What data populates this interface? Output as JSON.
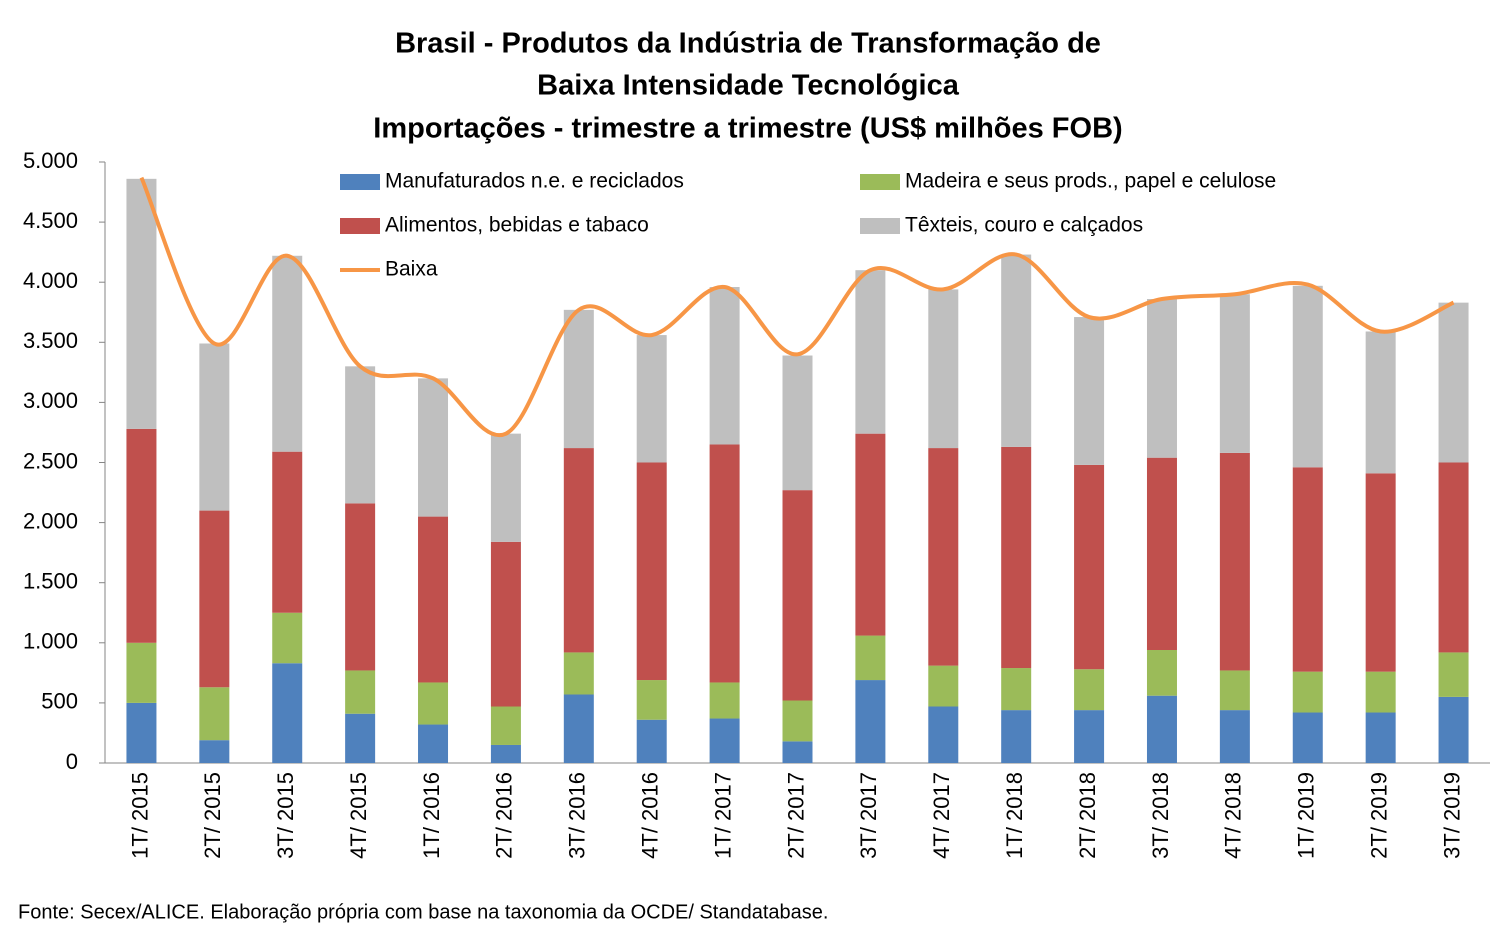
{
  "chart_data": {
    "type": "bar",
    "stacked": true,
    "title": [
      "Brasil - Produtos da Indústria de Transformação de",
      "Baixa Intensidade Tecnológica",
      "Importações - trimestre a trimestre (US$ milhões FOB)"
    ],
    "source": "Fonte: Secex/ALICE. Elaboração própria com base na taxonomia da OCDE/ Standatabase.",
    "categories": [
      "1T/ 2015",
      "2T/ 2015",
      "3T/ 2015",
      "4T/ 2015",
      "1T/ 2016",
      "2T/ 2016",
      "3T/ 2016",
      "4T/ 2016",
      "1T/ 2017",
      "2T/ 2017",
      "3T/ 2017",
      "4T/ 2017",
      "1T/ 2018",
      "2T/ 2018",
      "3T/ 2018",
      "4T/ 2018",
      "1T/ 2019",
      "2T/ 2019",
      "3T/ 2019"
    ],
    "series": [
      {
        "name": "Manufaturados n.e. e reciclados",
        "color": "#4f81bd",
        "values": [
          500,
          190,
          830,
          410,
          320,
          150,
          570,
          360,
          370,
          180,
          690,
          470,
          440,
          440,
          560,
          440,
          420,
          420,
          550
        ]
      },
      {
        "name": "Madeira e seus prods., papel e celulose",
        "color": "#9bbb59",
        "values": [
          500,
          440,
          420,
          360,
          350,
          320,
          350,
          330,
          300,
          340,
          370,
          340,
          350,
          340,
          380,
          330,
          340,
          340,
          370
        ]
      },
      {
        "name": "Alimentos, bebidas e tabaco",
        "color": "#c0504d",
        "values": [
          1780,
          1470,
          1340,
          1390,
          1380,
          1370,
          1700,
          1810,
          1980,
          1750,
          1680,
          1810,
          1840,
          1700,
          1600,
          1810,
          1700,
          1650,
          1580
        ]
      },
      {
        "name": "Têxteis, couro e calçados",
        "color": "#bfbfbf",
        "values": [
          2080,
          1390,
          1630,
          1140,
          1150,
          900,
          1150,
          1060,
          1310,
          1120,
          1360,
          1320,
          1600,
          1230,
          1320,
          1320,
          1510,
          1180,
          1330
        ]
      },
      {
        "name": "Baixa",
        "type": "line",
        "color": "#f79646",
        "values": [
          4870,
          3490,
          4220,
          3300,
          3200,
          2740,
          3770,
          3560,
          3960,
          3400,
          4100,
          3940,
          4230,
          3710,
          3860,
          3900,
          3980,
          3590,
          3830
        ]
      }
    ],
    "ylim": [
      0,
      5000
    ],
    "yticks": [
      0,
      500,
      {
        "value": 1000,
        "label": "1.000"
      },
      {
        "value": 1500,
        "label": "1.500"
      },
      {
        "value": 2000,
        "label": "2.000"
      },
      {
        "value": 2500,
        "label": "2.500"
      },
      {
        "value": 3000,
        "label": "3.000"
      },
      {
        "value": 3500,
        "label": "3.500"
      },
      {
        "value": 4000,
        "label": "4.000"
      },
      {
        "value": 4500,
        "label": "4.500"
      },
      {
        "value": 5000,
        "label": "5.000"
      }
    ],
    "grid": false
  }
}
